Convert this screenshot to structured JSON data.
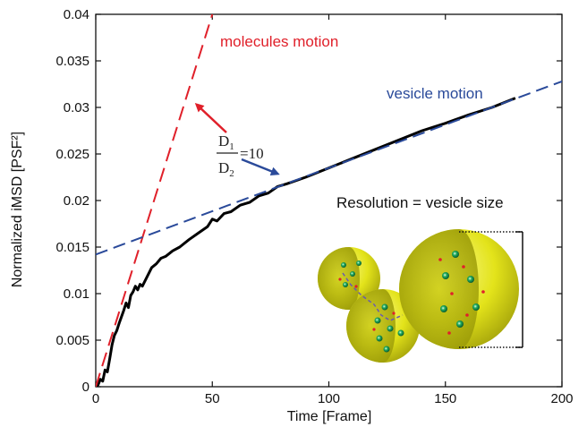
{
  "chart_data": {
    "type": "line",
    "title": "",
    "xlabel": "Time [Frame]",
    "ylabel": "Normalized iMSD [PSF²]",
    "xlim": [
      0,
      200
    ],
    "ylim": [
      0,
      0.04
    ],
    "x_ticks": [
      "0",
      "50",
      "100",
      "150",
      "200"
    ],
    "y_ticks": [
      "0",
      "0.005",
      "0.01",
      "0.015",
      "0.02",
      "0.025",
      "0.03",
      "0.035",
      "0.04"
    ],
    "grid": false,
    "series": [
      {
        "name": "",
        "style": "solid",
        "color": "#000000",
        "x": [
          0,
          1,
          2,
          3,
          4,
          5,
          6,
          7,
          8,
          9,
          10,
          11,
          12,
          13,
          14,
          15,
          16,
          17,
          18,
          19,
          20,
          22,
          24,
          26,
          28,
          30,
          33,
          36,
          40,
          44,
          48,
          50,
          52,
          55,
          58,
          62,
          66,
          70,
          74,
          78,
          82,
          90,
          100,
          110,
          120,
          130,
          140,
          150,
          160,
          170,
          180
        ],
        "y": [
          0,
          0.0002,
          0.0008,
          0.0006,
          0.0018,
          0.0016,
          0.003,
          0.0045,
          0.0055,
          0.006,
          0.0068,
          0.0075,
          0.0082,
          0.009,
          0.0085,
          0.0098,
          0.0102,
          0.0108,
          0.0104,
          0.011,
          0.0108,
          0.0118,
          0.0128,
          0.0132,
          0.0138,
          0.014,
          0.0146,
          0.015,
          0.0158,
          0.0165,
          0.0172,
          0.018,
          0.0178,
          0.0186,
          0.0188,
          0.0195,
          0.0198,
          0.0205,
          0.0208,
          0.0215,
          0.0218,
          0.0225,
          0.0235,
          0.0245,
          0.0255,
          0.0265,
          0.0275,
          0.0283,
          0.0292,
          0.03,
          0.031
        ]
      },
      {
        "name": "molecules motion",
        "style": "dashed",
        "color": "#e0202a",
        "x": [
          0,
          50
        ],
        "y": [
          0,
          0.04
        ]
      },
      {
        "name": "vesicle motion",
        "style": "dashed",
        "color": "#2a4a9a",
        "x": [
          0,
          200
        ],
        "y": [
          0.0142,
          0.0328
        ]
      }
    ],
    "annotations": {
      "molecules_motion": "molecules motion",
      "vesicle_motion": "vesicle motion",
      "ratio_top": "D",
      "ratio_top_sub": "1",
      "ratio_bottom": "D",
      "ratio_bottom_sub": "2",
      "ratio_value": "=10",
      "resolution": "Resolution = vesicle size"
    },
    "colors": {
      "molecules": "#e0202a",
      "vesicle": "#2a4a9a",
      "data": "#000000",
      "sphere": "#e6e61a"
    }
  }
}
